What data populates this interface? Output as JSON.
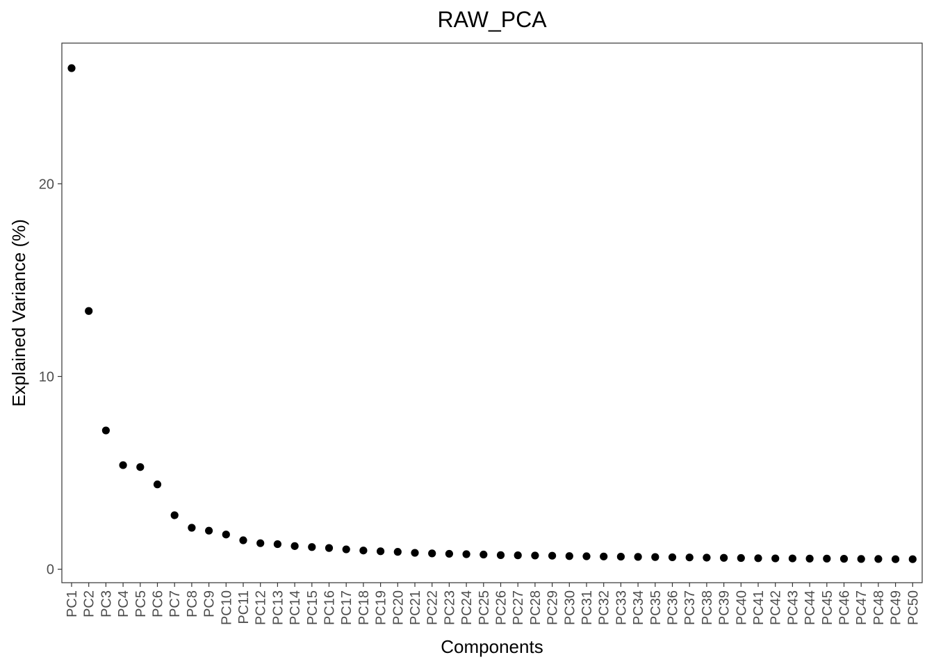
{
  "chart_data": {
    "type": "scatter",
    "title": "RAW_PCA",
    "xlabel": "Components",
    "ylabel": "Explained Variance (%)",
    "categories": [
      "PC1",
      "PC2",
      "PC3",
      "PC4",
      "PC5",
      "PC6",
      "PC7",
      "PC8",
      "PC9",
      "PC10",
      "PC11",
      "PC12",
      "PC13",
      "PC14",
      "PC15",
      "PC16",
      "PC17",
      "PC18",
      "PC19",
      "PC20",
      "PC21",
      "PC22",
      "PC23",
      "PC24",
      "PC25",
      "PC26",
      "PC27",
      "PC28",
      "PC29",
      "PC30",
      "PC31",
      "PC32",
      "PC33",
      "PC34",
      "PC35",
      "PC36",
      "PC37",
      "PC38",
      "PC39",
      "PC40",
      "PC41",
      "PC42",
      "PC43",
      "PC44",
      "PC45",
      "PC46",
      "PC47",
      "PC48",
      "PC49",
      "PC50"
    ],
    "values": [
      26.0,
      13.4,
      7.2,
      5.4,
      5.3,
      4.4,
      2.8,
      2.15,
      2.0,
      1.8,
      1.5,
      1.35,
      1.3,
      1.2,
      1.15,
      1.1,
      1.03,
      0.97,
      0.93,
      0.9,
      0.85,
      0.82,
      0.8,
      0.78,
      0.76,
      0.73,
      0.72,
      0.71,
      0.7,
      0.68,
      0.67,
      0.66,
      0.65,
      0.64,
      0.63,
      0.62,
      0.61,
      0.6,
      0.59,
      0.58,
      0.57,
      0.56,
      0.56,
      0.55,
      0.55,
      0.54,
      0.53,
      0.53,
      0.52,
      0.52
    ],
    "y_ticks": [
      0,
      10,
      20
    ],
    "ylim": [
      -0.7,
      27.3
    ],
    "grid": false,
    "point_color": "#000000",
    "panel_border_color": "#333333",
    "tick_label_color": "#4d4d4d"
  }
}
